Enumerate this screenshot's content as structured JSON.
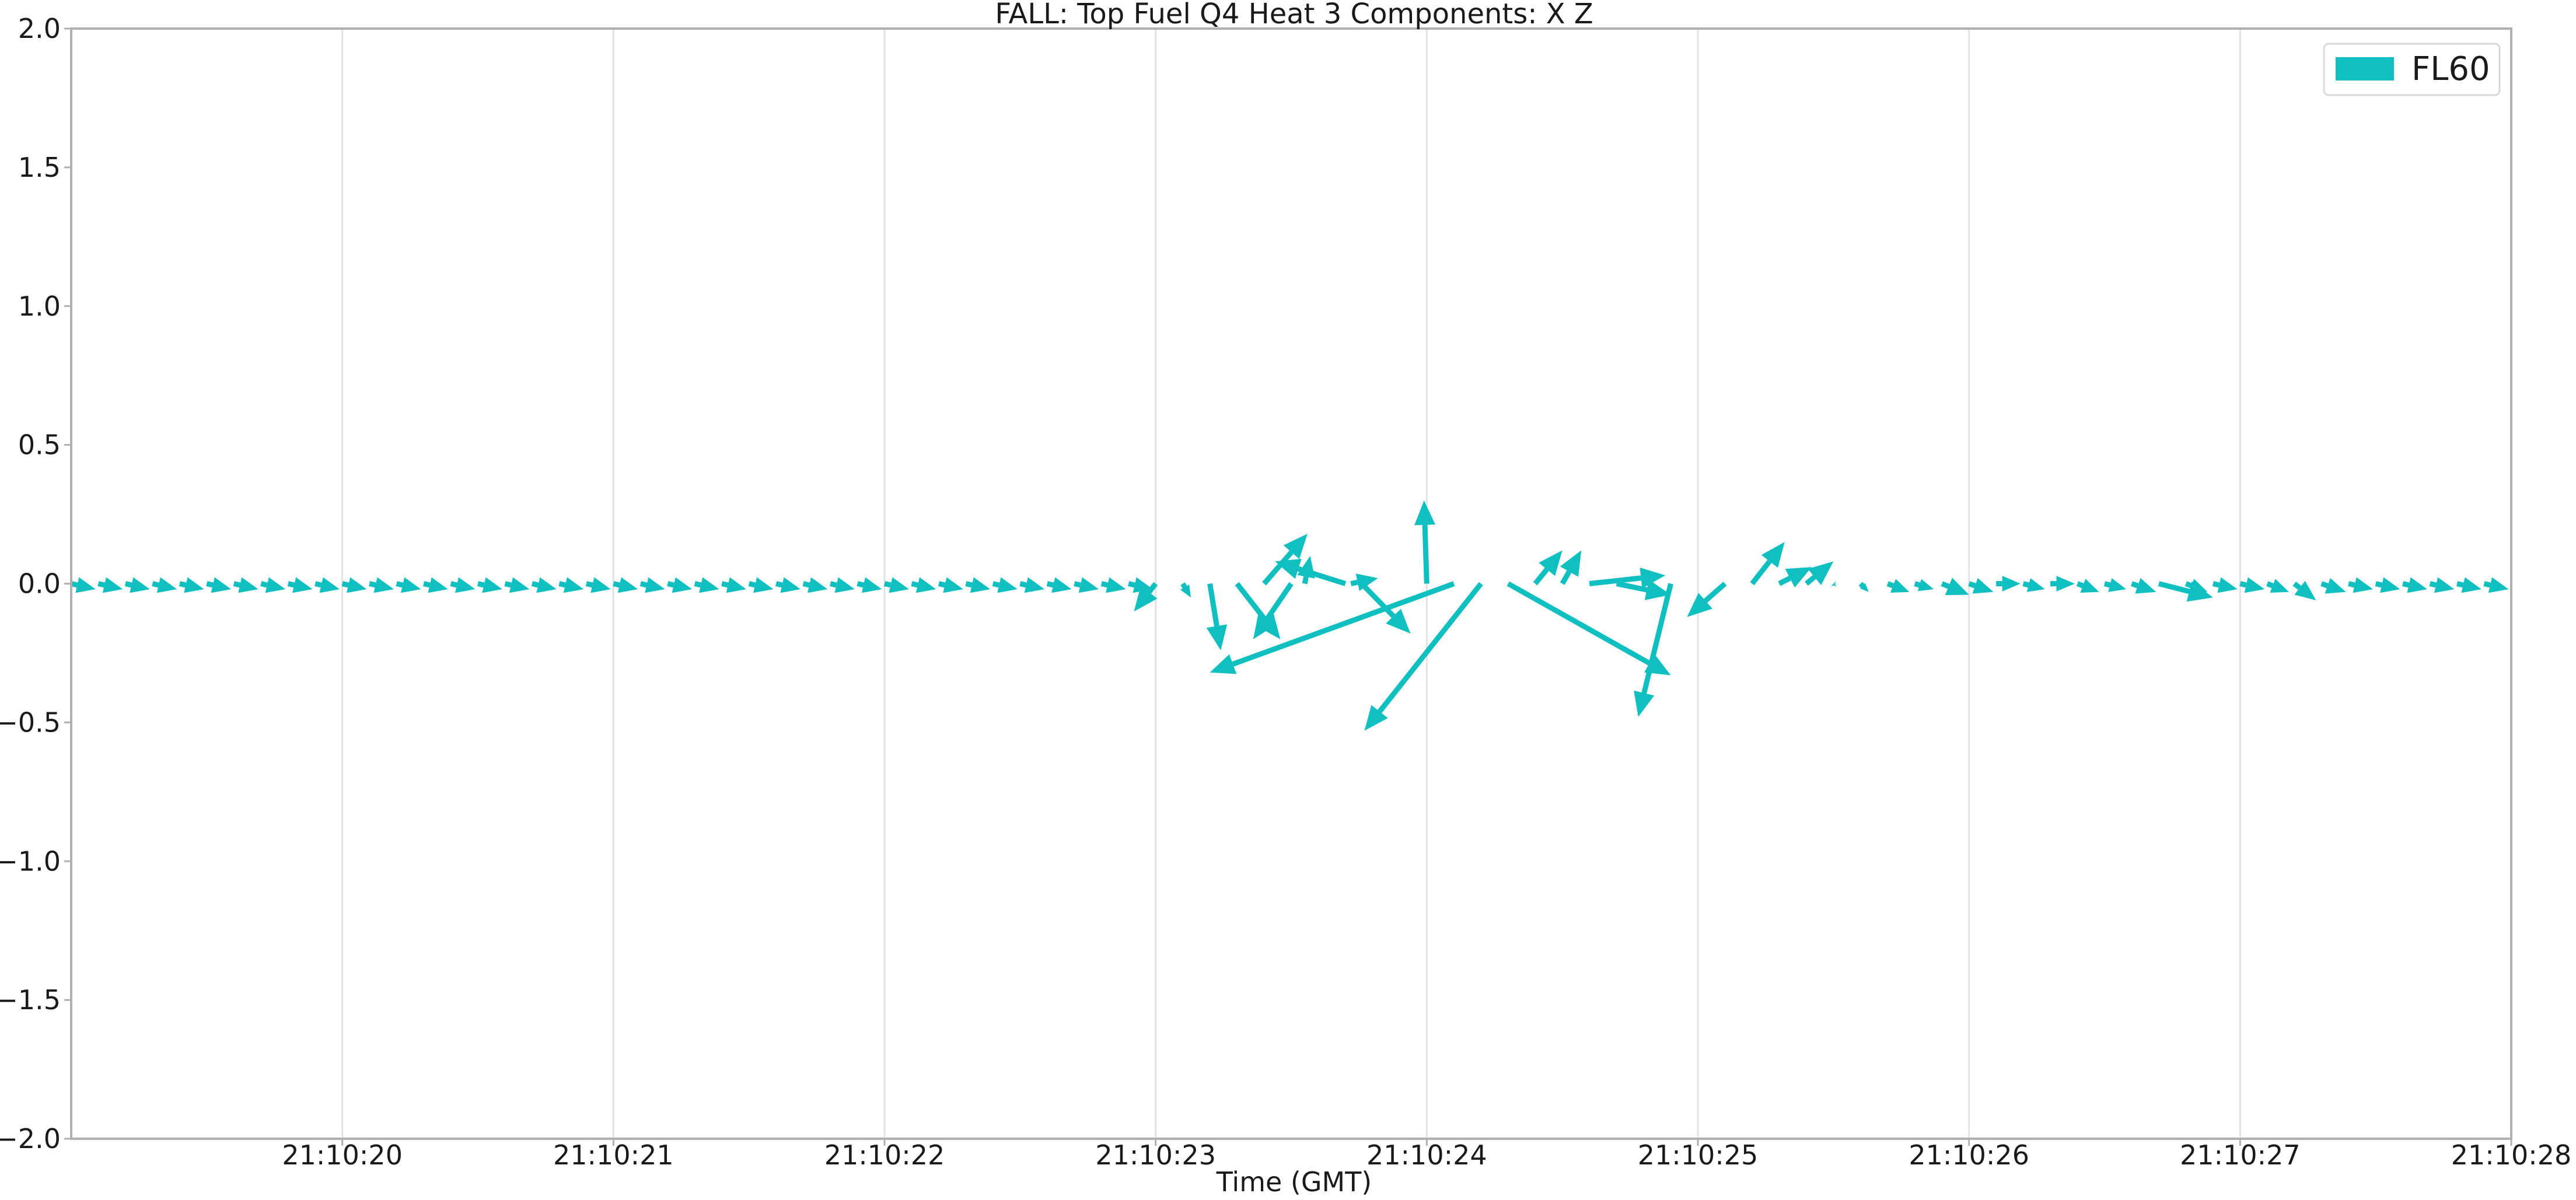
{
  "chart_data": {
    "type": "quiver",
    "title": "FALL: Top Fuel Q4 Heat 3 Components: X Z",
    "xlabel": "Time (GMT)",
    "ylabel": "",
    "xlim": [
      19.0,
      28.0
    ],
    "ylim": [
      -2.0,
      2.0
    ],
    "yticks": [
      2.0,
      1.5,
      1.0,
      0.5,
      0.0,
      -0.5,
      -1.0,
      -1.5,
      -2.0
    ],
    "ytick_labels": [
      "2.0",
      "1.5",
      "1.0",
      "0.5",
      "0.0",
      "−0.5",
      "−1.0",
      "−1.5",
      "−2.0"
    ],
    "xticks": [
      20,
      21,
      22,
      23,
      24,
      25,
      26,
      27,
      28
    ],
    "xtick_labels": [
      "21:10:20",
      "21:10:21",
      "21:10:22",
      "21:10:23",
      "21:10:24",
      "21:10:25",
      "21:10:26",
      "21:10:27",
      "21:10:28"
    ],
    "x_unit": "seconds after 21:10:00",
    "grid_x": true,
    "grid_y": false,
    "legend": {
      "position": "top-right",
      "entries": [
        {
          "name": "FL60",
          "color": "#10bfc0"
        }
      ]
    },
    "series": [
      {
        "name": "FL60",
        "color": "#10bfc0",
        "arrows": [
          {
            "x": 19.0,
            "u": 0.09,
            "v": -0.02
          },
          {
            "x": 19.1,
            "u": 0.09,
            "v": -0.02
          },
          {
            "x": 19.2,
            "u": 0.09,
            "v": -0.02
          },
          {
            "x": 19.3,
            "u": 0.09,
            "v": -0.02
          },
          {
            "x": 19.4,
            "u": 0.09,
            "v": -0.02
          },
          {
            "x": 19.5,
            "u": 0.09,
            "v": -0.02
          },
          {
            "x": 19.6,
            "u": 0.09,
            "v": -0.02
          },
          {
            "x": 19.7,
            "u": 0.09,
            "v": -0.02
          },
          {
            "x": 19.8,
            "u": 0.09,
            "v": -0.02
          },
          {
            "x": 19.9,
            "u": 0.09,
            "v": -0.02
          },
          {
            "x": 20.0,
            "u": 0.09,
            "v": -0.02
          },
          {
            "x": 20.1,
            "u": 0.09,
            "v": -0.02
          },
          {
            "x": 20.2,
            "u": 0.09,
            "v": -0.02
          },
          {
            "x": 20.3,
            "u": 0.09,
            "v": -0.02
          },
          {
            "x": 20.4,
            "u": 0.09,
            "v": -0.02
          },
          {
            "x": 20.5,
            "u": 0.09,
            "v": -0.02
          },
          {
            "x": 20.6,
            "u": 0.09,
            "v": -0.02
          },
          {
            "x": 20.7,
            "u": 0.09,
            "v": -0.02
          },
          {
            "x": 20.8,
            "u": 0.09,
            "v": -0.02
          },
          {
            "x": 20.9,
            "u": 0.09,
            "v": -0.02
          },
          {
            "x": 21.0,
            "u": 0.09,
            "v": -0.02
          },
          {
            "x": 21.1,
            "u": 0.09,
            "v": -0.02
          },
          {
            "x": 21.2,
            "u": 0.09,
            "v": -0.02
          },
          {
            "x": 21.3,
            "u": 0.09,
            "v": -0.02
          },
          {
            "x": 21.4,
            "u": 0.09,
            "v": -0.02
          },
          {
            "x": 21.5,
            "u": 0.09,
            "v": -0.02
          },
          {
            "x": 21.6,
            "u": 0.09,
            "v": -0.02
          },
          {
            "x": 21.7,
            "u": 0.09,
            "v": -0.02
          },
          {
            "x": 21.8,
            "u": 0.09,
            "v": -0.02
          },
          {
            "x": 21.9,
            "u": 0.09,
            "v": -0.02
          },
          {
            "x": 22.0,
            "u": 0.09,
            "v": -0.02
          },
          {
            "x": 22.1,
            "u": 0.09,
            "v": -0.02
          },
          {
            "x": 22.2,
            "u": 0.09,
            "v": -0.02
          },
          {
            "x": 22.3,
            "u": 0.09,
            "v": -0.02
          },
          {
            "x": 22.4,
            "u": 0.09,
            "v": -0.02
          },
          {
            "x": 22.5,
            "u": 0.09,
            "v": -0.02
          },
          {
            "x": 22.6,
            "u": 0.09,
            "v": -0.02
          },
          {
            "x": 22.7,
            "u": 0.09,
            "v": -0.02
          },
          {
            "x": 22.8,
            "u": 0.09,
            "v": -0.02
          },
          {
            "x": 22.9,
            "u": 0.09,
            "v": -0.02
          },
          {
            "x": 23.0,
            "u": -0.08,
            "v": -0.1
          },
          {
            "x": 23.1,
            "u": 0.03,
            "v": -0.05
          },
          {
            "x": 23.2,
            "u": 0.04,
            "v": -0.24
          },
          {
            "x": 23.3,
            "u": 0.16,
            "v": -0.2
          },
          {
            "x": 23.4,
            "u": 0.16,
            "v": 0.18
          },
          {
            "x": 23.5,
            "u": -0.14,
            "v": -0.2
          },
          {
            "x": 23.55,
            "u": 0.02,
            "v": 0.1
          },
          {
            "x": 23.7,
            "u": -0.26,
            "v": 0.08
          },
          {
            "x": 23.72,
            "u": 0.1,
            "v": 0.02
          },
          {
            "x": 23.76,
            "u": 0.18,
            "v": -0.18
          },
          {
            "x": 24.0,
            "u": -0.01,
            "v": 0.3
          },
          {
            "x": 24.1,
            "u": -0.9,
            "v": -0.32
          },
          {
            "x": 24.2,
            "u": -0.43,
            "v": -0.53
          },
          {
            "x": 24.3,
            "u": 0.6,
            "v": -0.33
          },
          {
            "x": 24.4,
            "u": 0.1,
            "v": 0.12
          },
          {
            "x": 24.5,
            "u": 0.07,
            "v": 0.12
          },
          {
            "x": 24.6,
            "u": 0.28,
            "v": 0.03
          },
          {
            "x": 24.7,
            "u": 0.2,
            "v": -0.04
          },
          {
            "x": 24.9,
            "u": -0.12,
            "v": -0.48
          },
          {
            "x": 25.1,
            "u": -0.14,
            "v": -0.12
          },
          {
            "x": 25.2,
            "u": 0.12,
            "v": 0.15
          },
          {
            "x": 25.3,
            "u": 0.12,
            "v": 0.06
          },
          {
            "x": 25.4,
            "u": 0.1,
            "v": 0.08
          },
          {
            "x": 25.5,
            "u": 0.01,
            "v": -0.01
          },
          {
            "x": 25.6,
            "u": 0.03,
            "v": -0.03
          },
          {
            "x": 25.7,
            "u": 0.08,
            "v": -0.03
          },
          {
            "x": 25.8,
            "u": 0.07,
            "v": -0.02
          },
          {
            "x": 25.9,
            "u": 0.1,
            "v": -0.04
          },
          {
            "x": 26.0,
            "u": 0.09,
            "v": -0.03
          },
          {
            "x": 26.1,
            "u": 0.09,
            "v": 0.0
          },
          {
            "x": 26.2,
            "u": 0.08,
            "v": -0.02
          },
          {
            "x": 26.3,
            "u": 0.09,
            "v": 0.0
          },
          {
            "x": 26.4,
            "u": 0.08,
            "v": -0.03
          },
          {
            "x": 26.5,
            "u": 0.08,
            "v": -0.02
          },
          {
            "x": 26.6,
            "u": 0.09,
            "v": -0.03
          },
          {
            "x": 26.7,
            "u": 0.2,
            "v": -0.05
          },
          {
            "x": 26.8,
            "u": 0.08,
            "v": -0.03
          },
          {
            "x": 26.9,
            "u": 0.09,
            "v": -0.02
          },
          {
            "x": 27.0,
            "u": 0.09,
            "v": -0.02
          },
          {
            "x": 27.1,
            "u": 0.08,
            "v": -0.03
          },
          {
            "x": 27.2,
            "u": 0.08,
            "v": -0.06
          },
          {
            "x": 27.3,
            "u": 0.09,
            "v": -0.03
          },
          {
            "x": 27.4,
            "u": 0.09,
            "v": -0.02
          },
          {
            "x": 27.5,
            "u": 0.09,
            "v": -0.02
          },
          {
            "x": 27.6,
            "u": 0.09,
            "v": -0.02
          },
          {
            "x": 27.7,
            "u": 0.09,
            "v": -0.02
          },
          {
            "x": 27.8,
            "u": 0.09,
            "v": -0.02
          },
          {
            "x": 27.9,
            "u": 0.09,
            "v": -0.02
          }
        ]
      }
    ]
  }
}
